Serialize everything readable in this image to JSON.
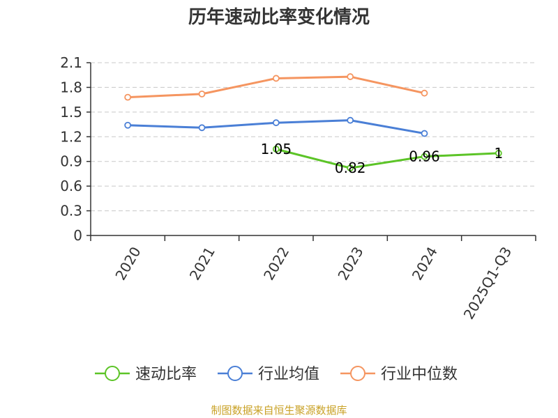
{
  "chart_data": {
    "type": "line",
    "title": "历年速动比率变化情况",
    "categories": [
      "2020",
      "2021",
      "2022",
      "2023",
      "2024",
      "2025Q1-Q3"
    ],
    "ylim": [
      0,
      2.1
    ],
    "yticks": [
      "0",
      "0.3",
      "0.6",
      "0.9",
      "1.2",
      "1.5",
      "1.8",
      "2.1"
    ],
    "grid": true,
    "legend_position": "bottom",
    "series": [
      {
        "name": "速动比率",
        "color": "#5cc427",
        "values": [
          null,
          null,
          1.05,
          0.82,
          0.96,
          1.0
        ],
        "labels": [
          "",
          "",
          "1.05",
          "0.82",
          "0.96",
          "1"
        ]
      },
      {
        "name": "行业均值",
        "color": "#4a7fd6",
        "values": [
          1.34,
          1.31,
          1.37,
          1.4,
          1.24,
          null
        ],
        "labels": [
          "",
          "",
          "",
          "",
          "",
          ""
        ]
      },
      {
        "name": "行业中位数",
        "color": "#f59560",
        "values": [
          1.68,
          1.72,
          1.91,
          1.93,
          1.73,
          null
        ],
        "labels": [
          "",
          "",
          "",
          "",
          "",
          ""
        ]
      }
    ],
    "source": "制图数据来自恒生聚源数据库"
  }
}
